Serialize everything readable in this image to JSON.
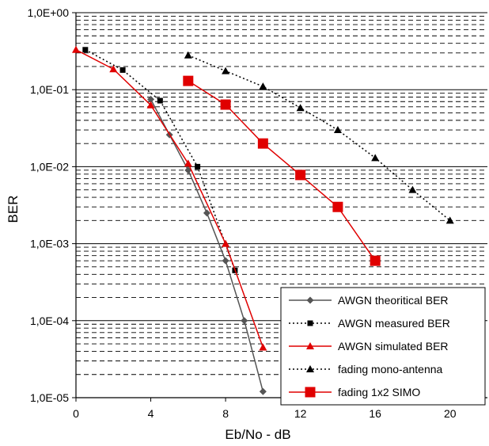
{
  "chart_data": {
    "type": "line",
    "title": "",
    "xlabel": "Eb/No - dB",
    "ylabel": "BER",
    "xlim": [
      0,
      22
    ],
    "ylim": [
      1e-05,
      1
    ],
    "y_scale": "log",
    "grid": "horizontal dashed minor, solid decades",
    "legend_position": "bottom-right",
    "x_ticks": [
      "0",
      "4",
      "8",
      "12",
      "16",
      "20"
    ],
    "x_tick_values": [
      0,
      4,
      8,
      12,
      16,
      20
    ],
    "y_ticks": [
      "1,0E+00",
      "1,0E-01",
      "1,0E-02",
      "1,0E-03",
      "1,0E-04",
      "1,0E-05"
    ],
    "y_tick_values": [
      1,
      0.1,
      0.01,
      0.001,
      0.0001,
      1e-05
    ],
    "series": [
      {
        "name": "AWGN theoritical BER",
        "color": "#555555",
        "line": "solid",
        "marker": "diamond",
        "x": [
          4,
          5,
          6,
          7,
          8,
          9,
          10
        ],
        "y": [
          0.075,
          0.026,
          0.009,
          0.0025,
          0.0006,
          0.0001,
          1.2e-05
        ]
      },
      {
        "name": "AWGN measured BER",
        "color": "#000000",
        "line": "dotted",
        "marker": "square-small",
        "x": [
          0.5,
          2.5,
          4.5,
          6.5,
          8.5
        ],
        "y": [
          0.33,
          0.18,
          0.072,
          0.01,
          0.00045
        ]
      },
      {
        "name": "AWGN simulated BER",
        "color": "#e00000",
        "line": "solid",
        "marker": "triangle",
        "x": [
          0,
          2,
          4,
          6,
          8,
          10
        ],
        "y": [
          0.33,
          0.185,
          0.063,
          0.011,
          0.001,
          4.5e-05
        ]
      },
      {
        "name": "fading mono-antenna",
        "color": "#000000",
        "line": "dotted",
        "marker": "triangle",
        "x": [
          6,
          8,
          10,
          12,
          14,
          16,
          18,
          20
        ],
        "y": [
          0.28,
          0.175,
          0.11,
          0.058,
          0.03,
          0.013,
          0.005,
          0.002
        ]
      },
      {
        "name": "fading 1x2 SIMO",
        "color": "#e00000",
        "line": "solid",
        "marker": "square-large",
        "x": [
          6,
          8,
          10,
          12,
          14,
          16
        ],
        "y": [
          0.13,
          0.064,
          0.02,
          0.0078,
          0.003,
          0.0006
        ]
      }
    ]
  }
}
